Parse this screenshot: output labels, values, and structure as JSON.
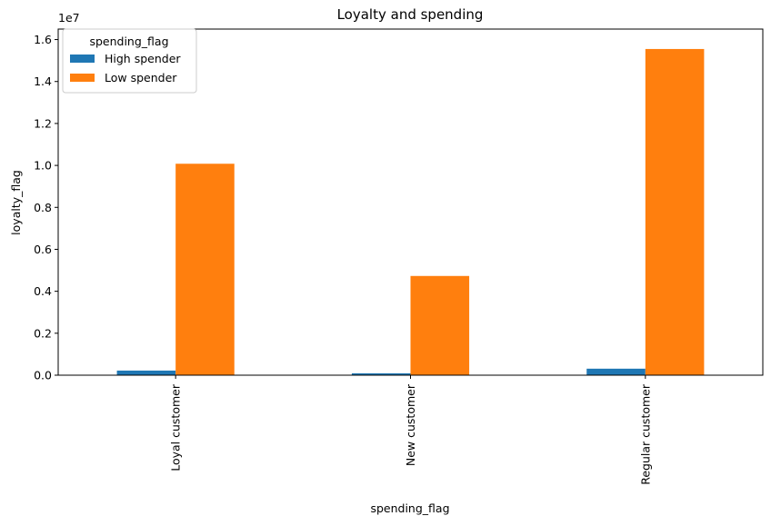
{
  "chart_data": {
    "type": "bar",
    "title": "Loyalty and spending",
    "xlabel": "spending_flag",
    "ylabel": "loyalty_flag",
    "categories": [
      "Loyal customer",
      "New customer",
      "Regular customer"
    ],
    "series": [
      {
        "name": "High spender",
        "color": "#1f77b4",
        "values": [
          220000,
          90000,
          310000
        ]
      },
      {
        "name": "Low spender",
        "color": "#ff7f0e",
        "values": [
          10080000,
          4730000,
          15550000
        ]
      }
    ],
    "ylim": [
      0,
      16500000
    ],
    "yticks": [
      0,
      2000000,
      4000000,
      6000000,
      8000000,
      10000000,
      12000000,
      14000000,
      16000000
    ],
    "ytick_labels": [
      "0.0",
      "0.2",
      "0.4",
      "0.6",
      "0.8",
      "1.0",
      "1.2",
      "1.4",
      "1.6"
    ],
    "y_offset_label": "1e7",
    "legend": {
      "title": "spending_flag",
      "placement": "top-left"
    },
    "grid": false,
    "x_tick_rotation": "vertical"
  }
}
